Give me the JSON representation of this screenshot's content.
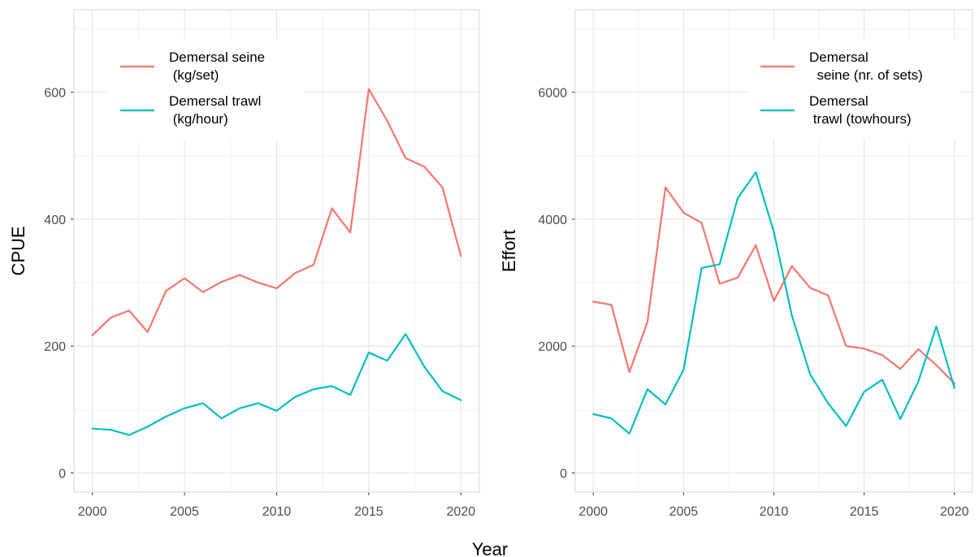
{
  "figure": {
    "xlabel": "Year"
  },
  "chart_data": [
    {
      "type": "line",
      "ylabel": "CPUE",
      "xlim": [
        1999,
        2021
      ],
      "ylim": [
        -30,
        730
      ],
      "xticks": [
        2000,
        2005,
        2010,
        2015,
        2020
      ],
      "yticks": [
        0,
        200,
        400,
        600
      ],
      "x": [
        2000,
        2001,
        2002,
        2003,
        2004,
        2005,
        2006,
        2007,
        2008,
        2009,
        2010,
        2011,
        2012,
        2013,
        2014,
        2015,
        2016,
        2017,
        2018,
        2019,
        2020
      ],
      "grid": true,
      "legend_position": "top-left",
      "series": [
        {
          "name": "Demersal seine\n (kg/set)",
          "color": "#F8766D",
          "values": [
            217,
            245,
            256,
            222,
            287,
            307,
            285,
            301,
            312,
            300,
            291,
            315,
            328,
            417,
            379,
            605,
            555,
            496,
            483,
            450,
            342
          ]
        },
        {
          "name": "Demersal trawl\n (kg/hour)",
          "color": "#00BFC4",
          "values": [
            70,
            68,
            60,
            73,
            89,
            102,
            110,
            86,
            102,
            110,
            98,
            120,
            132,
            137,
            123,
            190,
            177,
            219,
            168,
            129,
            115
          ]
        }
      ]
    },
    {
      "type": "line",
      "ylabel": "Effort",
      "xlim": [
        1999,
        2021
      ],
      "ylim": [
        -300,
        7300
      ],
      "xticks": [
        2000,
        2005,
        2010,
        2015,
        2020
      ],
      "yticks": [
        0,
        2000,
        4000,
        6000
      ],
      "x": [
        2000,
        2001,
        2002,
        2003,
        2004,
        2005,
        2006,
        2007,
        2008,
        2009,
        2010,
        2011,
        2012,
        2013,
        2014,
        2015,
        2016,
        2017,
        2018,
        2019,
        2020
      ],
      "grid": true,
      "legend_position": "top-right",
      "series": [
        {
          "name": "Demersal\n  seine (nr. of sets)",
          "color": "#F8766D",
          "values": [
            2700,
            2650,
            1590,
            2380,
            4500,
            4100,
            3940,
            2980,
            3080,
            3590,
            2710,
            3260,
            2920,
            2800,
            2000,
            1960,
            1860,
            1640,
            1950,
            1700,
            1410
          ]
        },
        {
          "name": "Demersal\n trawl (towhours)",
          "color": "#00BFC4",
          "values": [
            930,
            860,
            620,
            1320,
            1080,
            1630,
            3230,
            3290,
            4330,
            4740,
            3800,
            2480,
            1560,
            1100,
            740,
            1280,
            1470,
            850,
            1440,
            2310,
            1340
          ]
        }
      ]
    }
  ]
}
